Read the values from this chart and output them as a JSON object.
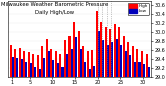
{
  "title": "Milwaukee Weather Barometric Pressure",
  "subtitle": "Daily High/Low",
  "high_color": "#ff0000",
  "low_color": "#0000bb",
  "background_color": "#ffffff",
  "ylim": [
    29.0,
    30.7
  ],
  "ybase": 29.0,
  "ytick_vals": [
    29.0,
    29.2,
    29.4,
    29.6,
    29.8,
    30.0,
    30.2,
    30.4,
    30.6
  ],
  "days": [
    1,
    2,
    3,
    4,
    5,
    6,
    7,
    8,
    9,
    10,
    11,
    12,
    13,
    14,
    15,
    16,
    17,
    18,
    19,
    20,
    21,
    22,
    23,
    24,
    25,
    26,
    27,
    28,
    29,
    30,
    31
  ],
  "highs": [
    29.72,
    29.62,
    29.65,
    29.58,
    29.55,
    29.52,
    29.48,
    29.7,
    29.84,
    29.62,
    29.58,
    29.52,
    29.82,
    29.92,
    30.22,
    30.02,
    29.68,
    29.58,
    29.6,
    30.48,
    30.22,
    30.12,
    30.08,
    30.18,
    30.12,
    29.92,
    29.78,
    29.68,
    29.62,
    29.58,
    29.52
  ],
  "lows": [
    29.45,
    29.42,
    29.4,
    29.32,
    29.3,
    29.22,
    29.18,
    29.42,
    29.58,
    29.38,
    29.3,
    29.22,
    29.52,
    29.62,
    29.88,
    29.62,
    29.32,
    29.18,
    29.24,
    30.02,
    29.82,
    29.72,
    29.78,
    29.84,
    29.72,
    29.58,
    29.48,
    29.32,
    29.32,
    29.28,
    29.22
  ],
  "xlabel_ticks": [
    1,
    5,
    10,
    15,
    20,
    25,
    30
  ],
  "xlabel_labels": [
    "1",
    "5",
    "10",
    "15",
    "20",
    "25",
    "30"
  ],
  "dotted_indices": [
    20,
    21,
    22,
    23
  ],
  "bar_width": 0.45,
  "title_fontsize": 3.8,
  "tick_fontsize": 3.5
}
